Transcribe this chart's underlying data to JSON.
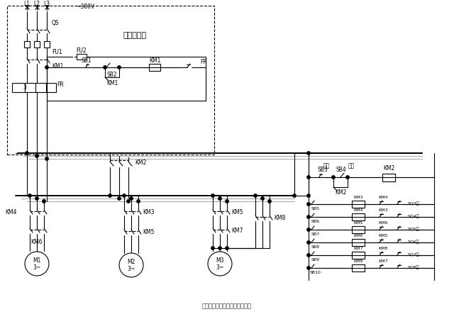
{
  "bg": "#ffffff",
  "lc": "#000000",
  "gc": "#aaaaaa",
  "title": "用八挡按钮操作的行车控制电路",
  "voltage": "~380V",
  "L_labels": [
    "L1",
    "L2",
    "L3"
  ],
  "QS": "QS",
  "FU1": "FU1",
  "FU2": "FU2",
  "SB1": "SB1",
  "SB2": "SB2",
  "KM1_label": "KM1",
  "FR_label": "FR",
  "diandi": "地面配电柜",
  "label_3": "3",
  "KM2_label": "KM2",
  "SB3": "SB3",
  "SB4": "SB4",
  "zongting": "总停",
  "zongkai": "总开",
  "KM4_lbl": "KM4",
  "KM6_lbl": "KM6",
  "KM3_lbl": "KM3",
  "KM5_lbl": "KM5",
  "KM7_lbl": "KM7",
  "KM8_lbl": "KM8",
  "M_labels": [
    "M1",
    "M2",
    "M3"
  ],
  "phase": "3~",
  "sb_buttons": [
    "SB5",
    "SB6",
    "SB7",
    "SB8",
    "SB9",
    "SB10"
  ],
  "coil_labels": [
    "KM3",
    "KM4",
    "KM5",
    "KM6",
    "KM7",
    "KM8"
  ],
  "interlock_labels": [
    "KM4",
    "KM3",
    "KM6",
    "KM5",
    "KM8",
    "KM7"
  ],
  "sq_labels": [
    "SQ3上",
    "SQ4下",
    "SQ5左",
    "SQ6右",
    "SQ7前",
    "SQ8后"
  ]
}
